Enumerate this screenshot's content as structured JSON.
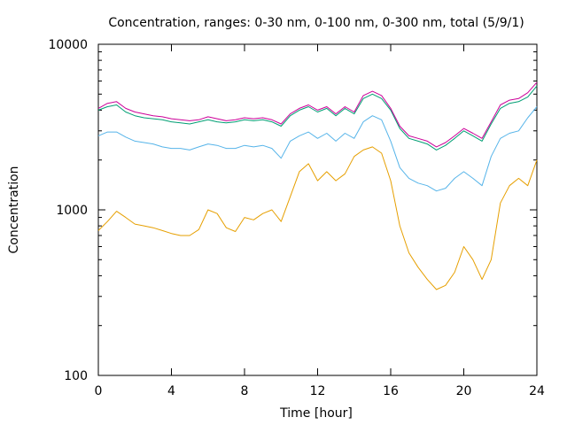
{
  "chart_data": {
    "type": "line",
    "title": "Concentration, ranges: 0-30 nm, 0-100 nm, 0-300 nm, total (5/9/1)",
    "xlabel": "Time [hour]",
    "ylabel": "Concentration",
    "xlim": [
      0,
      24
    ],
    "ylim": [
      100,
      10000
    ],
    "yscale": "log",
    "x_ticks": [
      "0",
      "4",
      "8",
      "12",
      "16",
      "20",
      "24"
    ],
    "y_ticks": [
      "100",
      "1000",
      "10000"
    ],
    "grid": false,
    "legend": "none",
    "x": [
      0,
      0.5,
      1,
      1.5,
      2,
      2.5,
      3,
      3.5,
      4,
      4.5,
      5,
      5.5,
      6,
      6.5,
      7,
      7.5,
      8,
      8.5,
      9,
      9.5,
      10,
      10.5,
      11,
      11.5,
      12,
      12.5,
      13,
      13.5,
      14,
      14.5,
      15,
      15.5,
      16,
      16.5,
      17,
      17.5,
      18,
      18.5,
      19,
      19.5,
      20,
      20.5,
      21,
      21.5,
      22,
      22.5,
      23,
      23.5,
      24
    ],
    "series": [
      {
        "color": "#e69f00",
        "values": [
          750,
          850,
          980,
          900,
          820,
          800,
          780,
          750,
          720,
          700,
          700,
          760,
          1000,
          950,
          780,
          740,
          900,
          870,
          950,
          1000,
          850,
          1200,
          1700,
          1900,
          1500,
          1700,
          1500,
          1650,
          2100,
          2300,
          2400,
          2200,
          1500,
          800,
          550,
          450,
          380,
          330,
          350,
          420,
          600,
          500,
          380,
          500,
          1100,
          1400,
          1550,
          1400,
          2000
        ]
      },
      {
        "color": "#56b4e9",
        "values": [
          2800,
          2950,
          2950,
          2750,
          2600,
          2550,
          2500,
          2400,
          2350,
          2350,
          2300,
          2400,
          2500,
          2450,
          2350,
          2350,
          2450,
          2400,
          2450,
          2350,
          2050,
          2600,
          2800,
          2950,
          2700,
          2900,
          2600,
          2900,
          2700,
          3400,
          3700,
          3500,
          2600,
          1800,
          1550,
          1450,
          1400,
          1300,
          1350,
          1550,
          1700,
          1550,
          1400,
          2100,
          2700,
          2900,
          3000,
          3600,
          4200
        ]
      },
      {
        "color": "#009e73",
        "values": [
          4000,
          4200,
          4300,
          3900,
          3700,
          3600,
          3550,
          3500,
          3400,
          3350,
          3300,
          3400,
          3500,
          3400,
          3350,
          3400,
          3500,
          3450,
          3500,
          3400,
          3200,
          3700,
          4000,
          4200,
          3900,
          4100,
          3700,
          4100,
          3800,
          4700,
          5000,
          4700,
          4000,
          3100,
          2700,
          2600,
          2500,
          2300,
          2450,
          2700,
          3000,
          2800,
          2600,
          3300,
          4100,
          4400,
          4500,
          4800,
          5600
        ]
      },
      {
        "color": "#cc0099",
        "values": [
          4100,
          4400,
          4500,
          4100,
          3900,
          3800,
          3700,
          3650,
          3550,
          3500,
          3450,
          3500,
          3650,
          3550,
          3450,
          3500,
          3600,
          3550,
          3600,
          3500,
          3300,
          3800,
          4100,
          4300,
          4000,
          4200,
          3800,
          4200,
          3900,
          4900,
          5200,
          4900,
          4100,
          3200,
          2800,
          2700,
          2600,
          2400,
          2550,
          2800,
          3100,
          2900,
          2700,
          3400,
          4300,
          4600,
          4700,
          5100,
          5900
        ]
      }
    ]
  }
}
